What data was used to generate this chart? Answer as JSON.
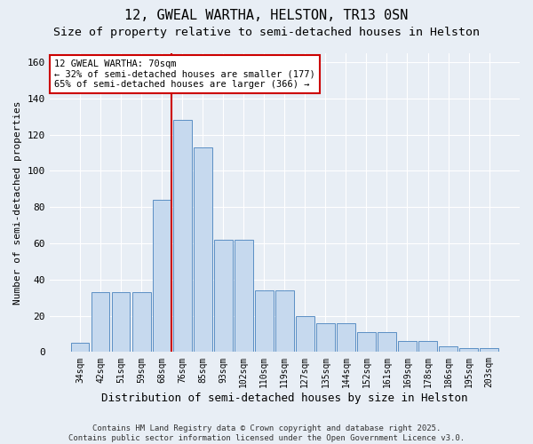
{
  "title1": "12, GWEAL WARTHA, HELSTON, TR13 0SN",
  "title2": "Size of property relative to semi-detached houses in Helston",
  "xlabel": "Distribution of semi-detached houses by size in Helston",
  "ylabel": "Number of semi-detached properties",
  "categories": [
    "34sqm",
    "42sqm",
    "51sqm",
    "59sqm",
    "68sqm",
    "76sqm",
    "85sqm",
    "93sqm",
    "102sqm",
    "110sqm",
    "119sqm",
    "127sqm",
    "135sqm",
    "144sqm",
    "152sqm",
    "161sqm",
    "169sqm",
    "178sqm",
    "186sqm",
    "195sqm",
    "203sqm"
  ],
  "values": [
    5,
    33,
    33,
    33,
    84,
    128,
    113,
    62,
    62,
    34,
    34,
    20,
    16,
    16,
    11,
    11,
    6,
    6,
    3,
    2,
    2
  ],
  "bar_color": "#c6d9ee",
  "bar_edge_color": "#5b8fc4",
  "highlight_line_index": 4,
  "annotation_text": "12 GWEAL WARTHA: 70sqm\n← 32% of semi-detached houses are smaller (177)\n65% of semi-detached houses are larger (366) →",
  "annotation_box_color": "#ffffff",
  "annotation_box_edge": "#cc0000",
  "vline_color": "#cc0000",
  "ylim": [
    0,
    165
  ],
  "yticks": [
    0,
    20,
    40,
    60,
    80,
    100,
    120,
    140,
    160
  ],
  "bg_color": "#e8eef5",
  "plot_bg_color": "#e8eef5",
  "footer_text": "Contains HM Land Registry data © Crown copyright and database right 2025.\nContains public sector information licensed under the Open Government Licence v3.0.",
  "title1_fontsize": 11,
  "title2_fontsize": 9.5,
  "xlabel_fontsize": 9,
  "ylabel_fontsize": 8,
  "annotation_fontsize": 7.5,
  "footer_fontsize": 6.5,
  "bar_width": 0.9
}
